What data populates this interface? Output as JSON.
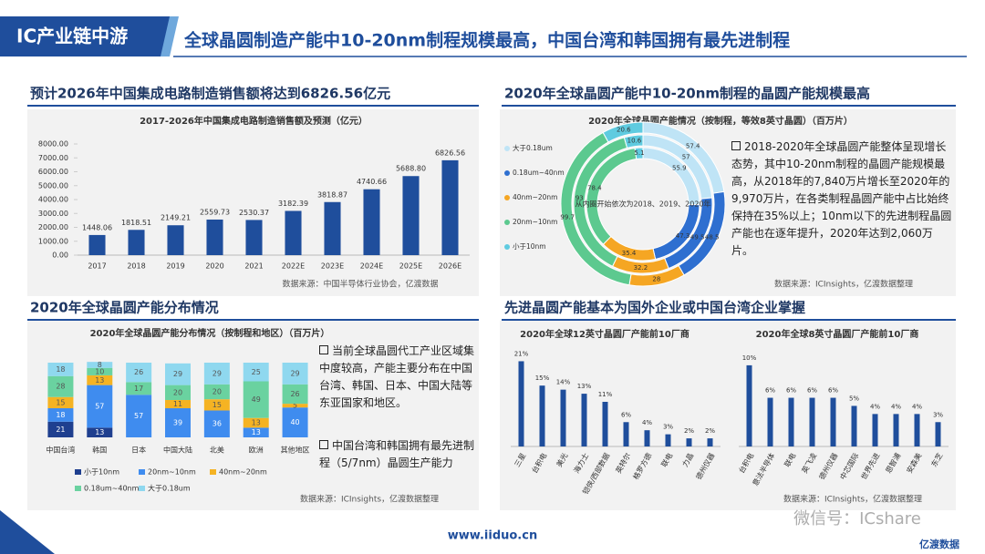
{
  "header": {
    "tab": "IC产业链中游",
    "title": "全球晶圆制造产能中10-20nm制程规模最高，中国台湾和韩国拥有最先进制程"
  },
  "chart_data": [
    {
      "type": "bar",
      "heading": "预计2026年中国集成电路制造销售额将达到6826.56亿元",
      "title": "2017-2026年中国集成电路制造销售额及预测（亿元）",
      "categories": [
        "2017",
        "2018",
        "2019",
        "2020",
        "2021",
        "2022E",
        "2023E",
        "2024E",
        "2025E",
        "2026E"
      ],
      "values": [
        1448.06,
        1818.51,
        2149.21,
        2559.73,
        2530.37,
        3182.39,
        3818.87,
        4740.66,
        5688.8,
        6826.56
      ],
      "value_labels": [
        "1448.06",
        "1818.51",
        "2149.21",
        "2559.73",
        "2530.37",
        "3182.39",
        "3818.87",
        "4740.66",
        "5688.80",
        "6826.56"
      ],
      "color": "#1f4e9c",
      "ylim": [
        0,
        8000
      ],
      "yticks": [
        {
          "value": 0,
          "label": "0.00"
        },
        {
          "value": 1000,
          "label": "1000.00"
        },
        {
          "value": 2000,
          "label": "2000.00"
        },
        {
          "value": 3000,
          "label": "3000.00"
        },
        {
          "value": 4000,
          "label": "4000.00"
        },
        {
          "value": 5000,
          "label": "5000.00"
        },
        {
          "value": 6000,
          "label": "6000.00"
        },
        {
          "value": 7000,
          "label": "7000.00"
        },
        {
          "value": 8000,
          "label": "8000.00"
        }
      ],
      "source": "数据来源：中国半导体行业协会，亿渡数据"
    },
    {
      "type": "donut",
      "heading": "2020年全球晶圆产能中10-20nm制程的晶圆产能规模最高",
      "title": "2020年全球晶圆产能情况（按制程，等效8英寸晶圆）（百万片）",
      "categories": [
        "大于0.18um",
        "0.18um~40nm",
        "40nm~20nm",
        "20nm~10nm",
        "小于10nm"
      ],
      "colors": [
        "#bfe4f6",
        "#2e6fd0",
        "#f5a623",
        "#5cc98f",
        "#5fcbe0"
      ],
      "series": [
        {
          "values": [
            55.9,
            47.3,
            35.4,
            78.4,
            5.1
          ]
        },
        {
          "values": [
            57,
            49.5,
            32.2,
            93,
            10.6
          ]
        },
        {
          "values": [
            57.4,
            48.5,
            28,
            99.7,
            20.6
          ]
        }
      ],
      "center_note": "从内圈开始依次为2018、2019、2020年",
      "note": "2018-2020年全球晶圆产能整体呈现增长态势，其中10-20nm制程的晶圆产能规模最高，从2018年的7,840万片增长至2020年的9,970万片，在各类制程晶圆产能中占比始终保持在35%以上；10nm以下的先进制程晶圆产能也在逐年提升，2020年达到2,060万片。",
      "source": "数据来源：ICInsights，亿渡数据整理"
    },
    {
      "type": "stacked_bar",
      "heading": "2020年全球晶圆产能分布情况",
      "title": "2020年全球晶圆产能分布情况（按制程和地区）（百万片）",
      "categories": [
        "中国台湾",
        "韩国",
        "日本",
        "中国大陆",
        "北美",
        "欧洲",
        "其他地区"
      ],
      "ylim": [
        0,
        100
      ],
      "series": [
        {
          "name": "小于10nm",
          "color": "#1f3f8f",
          "values": [
            21,
            13,
            0,
            0,
            0,
            0,
            0
          ]
        },
        {
          "name": "20nm~10nm",
          "color": "#3f8cef",
          "values": [
            18,
            57,
            57,
            39,
            36,
            13,
            40
          ]
        },
        {
          "name": "40nm~20nm",
          "color": "#f5b323",
          "values": [
            15,
            13,
            0,
            11,
            15,
            13,
            5
          ]
        },
        {
          "name": "0.18um~40nm",
          "color": "#6ad2a0",
          "values": [
            28,
            10,
            17,
            20,
            20,
            49,
            26
          ]
        },
        {
          "name": "大于0.18um",
          "color": "#8fd8ef",
          "values": [
            18,
            8,
            26,
            29,
            29,
            25,
            29
          ]
        }
      ],
      "notes": [
        "当前全球晶圆代工产业区域集中度较高，产能主要分布在中国台湾、韩国、日本、中国大陆等东亚国家和地区。",
        "中国台湾和韩国拥有最先进制程（5/7nm）晶圆生产能力"
      ],
      "source": "数据来源：ICInsights，亿渡数据整理"
    },
    {
      "type": "bar",
      "heading": "先进晶圆产能基本为国外企业或中国台湾企业掌握",
      "title": "2020年全球12英寸晶圆厂产能前10厂商",
      "categories": [
        "三星",
        "台积电",
        "美光",
        "海力士",
        "铠侠/西部数据",
        "英特尔",
        "格罗方德",
        "联电",
        "力晶",
        "德州仪器"
      ],
      "values": [
        21,
        15,
        14,
        13,
        11,
        6,
        4,
        3,
        2,
        2
      ],
      "value_labels": [
        "21%",
        "15%",
        "14%",
        "13%",
        "11%",
        "6%",
        "4%",
        "3%",
        "2%",
        "2%"
      ],
      "color": "#1f4e9c",
      "ylim": [
        0,
        22
      ]
    },
    {
      "type": "bar",
      "title": "2020年全球8英寸晶圆厂产能前10厂商",
      "categories": [
        "台积电",
        "意法半导体",
        "联电",
        "英飞凌",
        "德州仪器",
        "中芯国际",
        "世界先进",
        "恩智浦",
        "安森美",
        "东芝"
      ],
      "values": [
        10,
        6,
        6,
        6,
        6,
        5,
        4,
        4,
        4,
        3
      ],
      "value_labels": [
        "10%",
        "6%",
        "6%",
        "6%",
        "6%",
        "5%",
        "4%",
        "4%",
        "4%",
        "3%"
      ],
      "color": "#1f4e9c",
      "ylim": [
        0,
        11
      ],
      "source": "数据来源：ICInsights，亿渡数据整理"
    }
  ],
  "footer": {
    "url": "www.iiduo.cn",
    "logo": "亿渡数据",
    "watermark": "微信号：ICshare"
  }
}
